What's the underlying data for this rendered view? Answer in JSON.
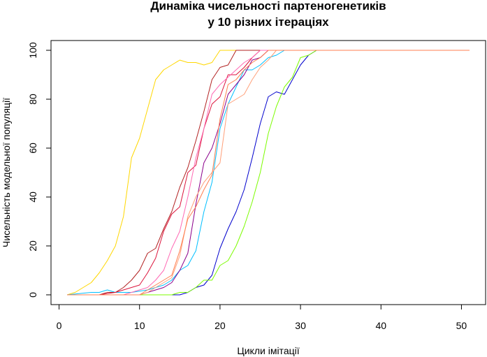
{
  "chart_data": {
    "type": "line",
    "title_lines": [
      "Динаміка чисельності партеногенетиків",
      "у 10 різних ітераціях"
    ],
    "xlabel": "Цикли імітації",
    "ylabel": "Чисельність модельної популяції",
    "xlim": [
      -1,
      53
    ],
    "ylim": [
      -4,
      104
    ],
    "x_ticks": [
      0,
      10,
      20,
      30,
      40,
      50
    ],
    "y_ticks": [
      0,
      20,
      40,
      60,
      80,
      100
    ],
    "grid": false,
    "legend": "none",
    "series": [
      {
        "color": "#FFD700",
        "points": [
          [
            1,
            0
          ],
          [
            2,
            1
          ],
          [
            3,
            3
          ],
          [
            4,
            5
          ],
          [
            5,
            9
          ],
          [
            6,
            14
          ],
          [
            7,
            20
          ],
          [
            8,
            32
          ],
          [
            9,
            56
          ],
          [
            10,
            64
          ],
          [
            11,
            76
          ],
          [
            12,
            88
          ],
          [
            13,
            92
          ],
          [
            14,
            94
          ],
          [
            15,
            96
          ],
          [
            16,
            95
          ],
          [
            17,
            95
          ],
          [
            18,
            94
          ],
          [
            19,
            95
          ],
          [
            20,
            100
          ],
          [
            21,
            100
          ],
          [
            22,
            100
          ],
          [
            51,
            100
          ]
        ]
      },
      {
        "color": "#0000CD",
        "points": [
          [
            1,
            0
          ],
          [
            14,
            0
          ],
          [
            15,
            0
          ],
          [
            16,
            1
          ],
          [
            17,
            3
          ],
          [
            18,
            4
          ],
          [
            19,
            8
          ],
          [
            20,
            19
          ],
          [
            21,
            27
          ],
          [
            22,
            34
          ],
          [
            23,
            43
          ],
          [
            24,
            56
          ],
          [
            25,
            70
          ],
          [
            26,
            81
          ],
          [
            27,
            83
          ],
          [
            28,
            82
          ],
          [
            29,
            88
          ],
          [
            30,
            94
          ],
          [
            31,
            98
          ],
          [
            32,
            100
          ],
          [
            51,
            100
          ]
        ]
      },
      {
        "color": "#7CFC00",
        "points": [
          [
            1,
            0
          ],
          [
            14,
            0
          ],
          [
            15,
            1
          ],
          [
            16,
            1
          ],
          [
            17,
            3
          ],
          [
            18,
            6
          ],
          [
            19,
            6
          ],
          [
            20,
            12
          ],
          [
            21,
            14
          ],
          [
            22,
            20
          ],
          [
            23,
            28
          ],
          [
            24,
            38
          ],
          [
            25,
            50
          ],
          [
            26,
            66
          ],
          [
            27,
            77
          ],
          [
            28,
            85
          ],
          [
            29,
            89
          ],
          [
            30,
            97
          ],
          [
            31,
            98
          ],
          [
            32,
            100
          ],
          [
            51,
            100
          ]
        ]
      },
      {
        "color": "#00BFFF",
        "points": [
          [
            1,
            0
          ],
          [
            4,
            1
          ],
          [
            5,
            1
          ],
          [
            6,
            2
          ],
          [
            7,
            1
          ],
          [
            9,
            1
          ],
          [
            11,
            2
          ],
          [
            12,
            3
          ],
          [
            13,
            4
          ],
          [
            14,
            6
          ],
          [
            15,
            10
          ],
          [
            16,
            12
          ],
          [
            17,
            18
          ],
          [
            18,
            34
          ],
          [
            19,
            46
          ],
          [
            20,
            68
          ],
          [
            21,
            78
          ],
          [
            22,
            85
          ],
          [
            23,
            92
          ],
          [
            24,
            92
          ],
          [
            25,
            94
          ],
          [
            26,
            97
          ],
          [
            27,
            98
          ],
          [
            28,
            100
          ],
          [
            51,
            100
          ]
        ]
      },
      {
        "color": "#B22222",
        "points": [
          [
            1,
            0
          ],
          [
            5,
            0
          ],
          [
            6,
            1
          ],
          [
            7,
            1
          ],
          [
            8,
            3
          ],
          [
            9,
            6
          ],
          [
            10,
            10
          ],
          [
            11,
            17
          ],
          [
            12,
            19
          ],
          [
            13,
            27
          ],
          [
            14,
            34
          ],
          [
            15,
            44
          ],
          [
            16,
            52
          ],
          [
            17,
            63
          ],
          [
            18,
            75
          ],
          [
            19,
            88
          ],
          [
            20,
            93
          ],
          [
            21,
            94
          ],
          [
            22,
            100
          ],
          [
            51,
            100
          ]
        ]
      },
      {
        "color": "#DC143C",
        "points": [
          [
            1,
            0
          ],
          [
            5,
            0
          ],
          [
            7,
            1
          ],
          [
            8,
            2
          ],
          [
            9,
            3
          ],
          [
            10,
            4
          ],
          [
            11,
            9
          ],
          [
            12,
            15
          ],
          [
            13,
            26
          ],
          [
            14,
            33
          ],
          [
            15,
            36
          ],
          [
            16,
            50
          ],
          [
            17,
            53
          ],
          [
            18,
            68
          ],
          [
            19,
            78
          ],
          [
            20,
            81
          ],
          [
            21,
            90
          ],
          [
            22,
            90
          ],
          [
            23,
            93
          ],
          [
            24,
            97
          ],
          [
            25,
            100
          ],
          [
            51,
            100
          ]
        ]
      },
      {
        "color": "#8B008B",
        "points": [
          [
            1,
            0
          ],
          [
            10,
            0
          ],
          [
            11,
            1
          ],
          [
            12,
            2
          ],
          [
            13,
            3
          ],
          [
            14,
            5
          ],
          [
            15,
            10
          ],
          [
            16,
            17
          ],
          [
            17,
            37
          ],
          [
            18,
            54
          ],
          [
            19,
            60
          ],
          [
            20,
            70
          ],
          [
            21,
            82
          ],
          [
            22,
            86
          ],
          [
            23,
            90
          ],
          [
            24,
            96
          ],
          [
            25,
            97
          ],
          [
            26,
            100
          ],
          [
            51,
            100
          ]
        ]
      },
      {
        "color": "#FF69B4",
        "points": [
          [
            1,
            0
          ],
          [
            8,
            0
          ],
          [
            9,
            1
          ],
          [
            10,
            2
          ],
          [
            11,
            3
          ],
          [
            12,
            6
          ],
          [
            13,
            10
          ],
          [
            14,
            19
          ],
          [
            15,
            26
          ],
          [
            16,
            40
          ],
          [
            17,
            56
          ],
          [
            18,
            68
          ],
          [
            19,
            82
          ],
          [
            20,
            86
          ],
          [
            21,
            89
          ],
          [
            22,
            92
          ],
          [
            23,
            95
          ],
          [
            24,
            97
          ],
          [
            25,
            100
          ],
          [
            51,
            100
          ]
        ]
      },
      {
        "color": "#FFA07A",
        "points": [
          [
            1,
            0
          ],
          [
            10,
            0
          ],
          [
            11,
            1
          ],
          [
            12,
            3
          ],
          [
            13,
            5
          ],
          [
            14,
            7
          ],
          [
            15,
            16
          ],
          [
            16,
            32
          ],
          [
            17,
            40
          ],
          [
            18,
            46
          ],
          [
            19,
            50
          ],
          [
            20,
            54
          ],
          [
            21,
            78
          ],
          [
            22,
            80
          ],
          [
            23,
            82
          ],
          [
            24,
            88
          ],
          [
            25,
            93
          ],
          [
            26,
            96
          ],
          [
            27,
            100
          ],
          [
            51,
            100
          ]
        ]
      },
      {
        "color": "#FF7F50",
        "points": [
          [
            1,
            0
          ],
          [
            10,
            0
          ],
          [
            11,
            2
          ],
          [
            12,
            4
          ],
          [
            13,
            6
          ],
          [
            14,
            8
          ],
          [
            15,
            18
          ],
          [
            16,
            31
          ],
          [
            17,
            36
          ],
          [
            18,
            43
          ],
          [
            19,
            49
          ],
          [
            20,
            72
          ],
          [
            21,
            86
          ],
          [
            22,
            88
          ],
          [
            23,
            92
          ],
          [
            24,
            95
          ],
          [
            25,
            97
          ],
          [
            26,
            100
          ],
          [
            51,
            100
          ]
        ]
      }
    ]
  }
}
